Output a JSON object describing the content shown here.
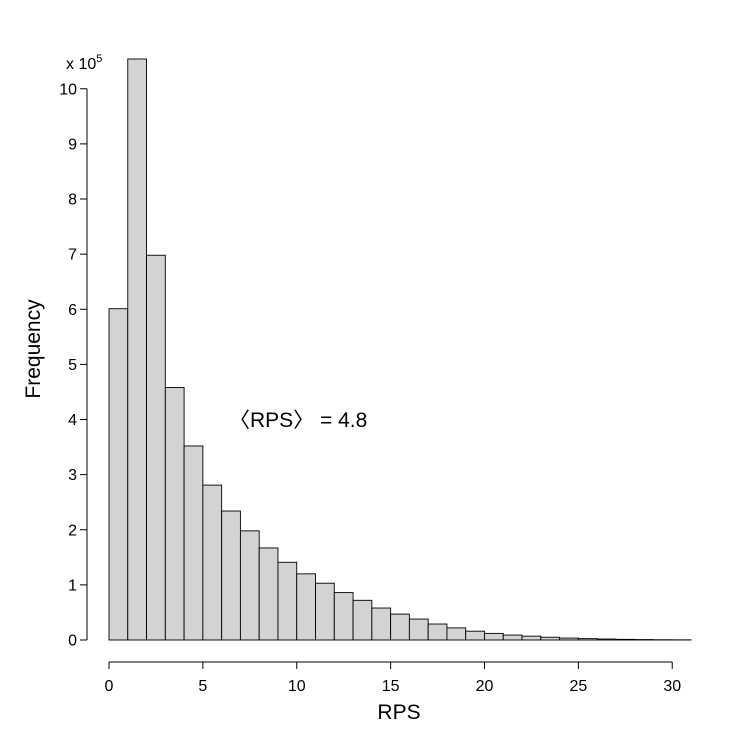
{
  "chart_data": {
    "type": "bar",
    "xlabel": "RPS",
    "ylabel": "Frequency",
    "y_multiplier": {
      "prefix": "x 10",
      "exponent": "5"
    },
    "annotation": "〈RPS〉 = 4.8",
    "bin_width": 1,
    "bin_edges_start": 0,
    "values": [
      6.01,
      10.54,
      6.98,
      4.58,
      3.52,
      2.81,
      2.34,
      1.98,
      1.67,
      1.41,
      1.2,
      1.03,
      0.86,
      0.72,
      0.58,
      0.47,
      0.38,
      0.29,
      0.22,
      0.16,
      0.12,
      0.09,
      0.07,
      0.05,
      0.035,
      0.025,
      0.018,
      0.012,
      0.008,
      0.005,
      0.003
    ],
    "xlim": [
      0,
      31
    ],
    "ylim": [
      0,
      10.54
    ],
    "xticks": [
      0,
      5,
      10,
      15,
      20,
      25,
      30
    ],
    "yticks": [
      0,
      1,
      2,
      3,
      4,
      5,
      6,
      7,
      8,
      9,
      10
    ],
    "bar_color": "#d3d3d3",
    "edge_color": "#000000",
    "grid": false,
    "legend": "none"
  }
}
